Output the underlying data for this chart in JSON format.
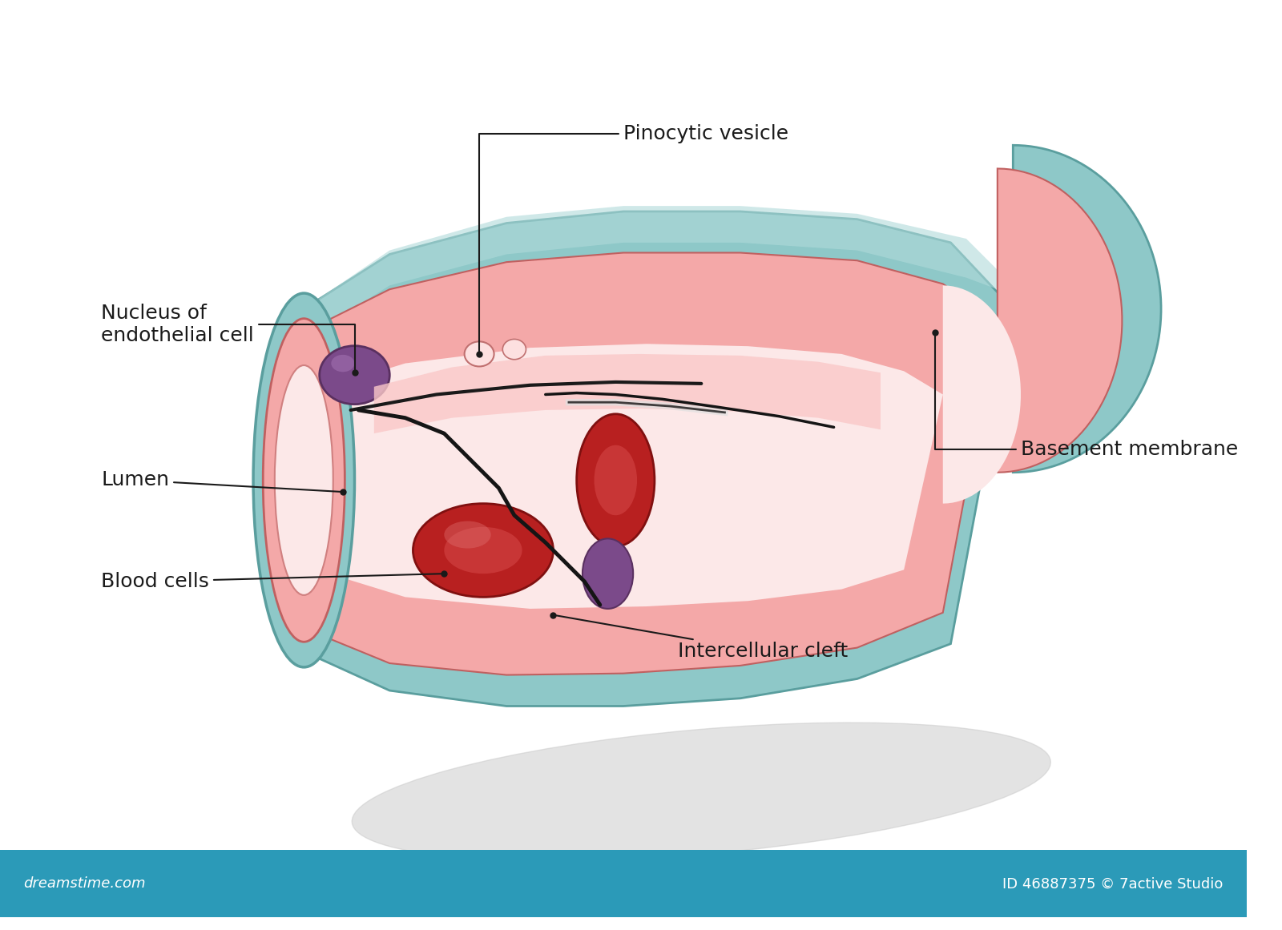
{
  "background_color": "#ffffff",
  "bottom_bar_color": "#2b9ab8",
  "bottom_bar_text_left": "dreamstime.com",
  "bottom_bar_text_right": "ID 46887375 © 7active Studio",
  "labels": {
    "pinocytic_vesicle": "Pinocytic vesicle",
    "nucleus": "Nucleus of\nendothelial cell",
    "lumen": "Lumen",
    "blood_cells": "Blood cells",
    "basement_membrane": "Basement membrane",
    "intercellular_cleft": "Intercellular cleft"
  },
  "colors": {
    "outer_membrane": "#8ec8c8",
    "outer_membrane_dark": "#5a9e9e",
    "outer_membrane_light": "#b0dada",
    "inner_wall": "#f4a8a8",
    "inner_wall_light": "#fac8c8",
    "inner_wall_lighter": "#fde0e0",
    "blood_red": "#b82020",
    "blood_red_mid": "#d04040",
    "blood_red_light": "#e07070",
    "nucleus_purple": "#7b4a8a",
    "nucleus_purple_dark": "#5a3060",
    "nucleus_purple_light": "#9b6aaa",
    "lumen_interior": "#fce8e8",
    "cleft_dark": "#1a1a1a",
    "line_color": "#1a1a1a",
    "shadow_color": "#cccccc",
    "text_color": "#1a1a1a",
    "white_highlight": "#ffffff"
  },
  "figsize": [
    16,
    11.61
  ],
  "dpi": 100
}
